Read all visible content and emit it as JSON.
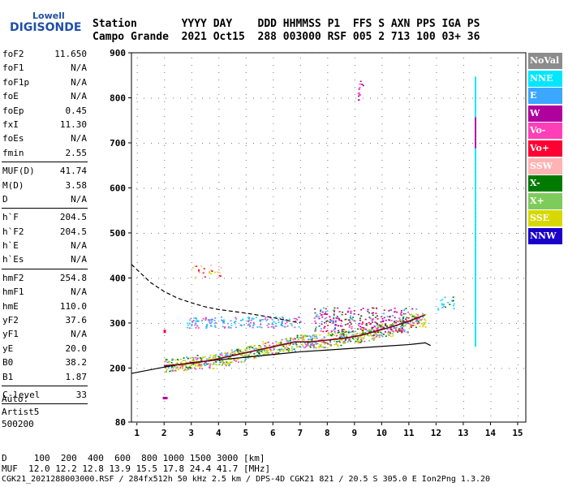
{
  "logo": {
    "line1": "Lowell",
    "line2": "DIGISONDE"
  },
  "header": {
    "labels": "Station       YYYY DAY    DDD HHMMSS P1  FFS S AXN PPS IGA PS",
    "values": "Campo Grande  2021 Oct15  288 003000 RSF 005 2 713 100 03+ 36"
  },
  "params_group1": [
    {
      "label": "foF2",
      "value": "11.650"
    },
    {
      "label": "foF1",
      "value": "N/A"
    },
    {
      "label": "foF1p",
      "value": "N/A"
    },
    {
      "label": "foE",
      "value": "N/A"
    },
    {
      "label": "foEp",
      "value": "0.45"
    },
    {
      "label": "fxI",
      "value": "11.30"
    },
    {
      "label": "foEs",
      "value": "N/A"
    },
    {
      "label": "fmin",
      "value": "2.55"
    }
  ],
  "params_group2": [
    {
      "label": "MUF(D)",
      "value": "41.74"
    },
    {
      "label": "M(D)",
      "value": "3.58"
    },
    {
      "label": "D",
      "value": "N/A"
    }
  ],
  "params_group3": [
    {
      "label": "h`F",
      "value": "204.5"
    },
    {
      "label": "h`F2",
      "value": "204.5"
    },
    {
      "label": "h`E",
      "value": "N/A"
    },
    {
      "label": "h`Es",
      "value": "N/A"
    }
  ],
  "params_group4": [
    {
      "label": "hmF2",
      "value": "254.8"
    },
    {
      "label": "hmF1",
      "value": "N/A"
    },
    {
      "label": "hmE",
      "value": "110.0"
    },
    {
      "label": "yF2",
      "value": "37.6"
    },
    {
      "label": "yF1",
      "value": "N/A"
    },
    {
      "label": "yE",
      "value": "20.0"
    },
    {
      "label": "B0",
      "value": "38.2"
    },
    {
      "label": "B1",
      "value": "1.87"
    }
  ],
  "params_group5": [
    {
      "label": "C-level",
      "value": "33"
    }
  ],
  "auto": {
    "line1": "Auto:",
    "line2": "Artist5",
    "line3": "500200"
  },
  "legend": [
    {
      "label": "NoVal",
      "color": "#8c8c8c",
      "text": "#ffffff"
    },
    {
      "label": "NNE",
      "color": "#00e6ff",
      "text": "#ffffff"
    },
    {
      "label": "E",
      "color": "#3ba7ff",
      "text": "#ffffff"
    },
    {
      "label": "W",
      "color": "#b0009e",
      "text": "#ffffff"
    },
    {
      "label": "Vo-",
      "color": "#ff3fb8",
      "text": "#ffffff"
    },
    {
      "label": "Vo+",
      "color": "#ff0033",
      "text": "#ffffff"
    },
    {
      "label": "SSW",
      "color": "#ffb3b3",
      "text": "#ffffff"
    },
    {
      "label": "X-",
      "color": "#007a00",
      "text": "#ffffff"
    },
    {
      "label": "X+",
      "color": "#7dcc5b",
      "text": "#ffffff"
    },
    {
      "label": "SSE",
      "color": "#d8d800",
      "text": "#ffffff"
    },
    {
      "label": "NNW",
      "color": "#1a00c8",
      "text": "#ffffff"
    }
  ],
  "footer": {
    "line1": "D     100  200  400  600  800 1000 1500 3000 [km]",
    "line2": "MUF  12.0 12.2 12.8 13.9 15.5 17.8 24.4 41.7 [MHz]",
    "line3": "CGK21_2021288003000.RSF / 284fx512h 50 kHz 2.5 km / DPS-4D CGK21 821 / 20.5 S 305.0 E Ion2Png 1.3.20"
  },
  "chart_data": {
    "type": "scatter",
    "title": "",
    "xlabel": "",
    "ylabel": "",
    "xlim": [
      0.8,
      15.3
    ],
    "ylim": [
      80,
      900
    ],
    "x_ticks": [
      1,
      2,
      3,
      4,
      5,
      6,
      7,
      8,
      9,
      10,
      11,
      12,
      13,
      14,
      15
    ],
    "y_ticks": [
      80,
      200,
      300,
      400,
      500,
      600,
      700,
      800,
      900
    ],
    "trace_x": [
      2.0,
      2.6,
      3.2,
      3.8,
      4.4,
      5.0,
      5.6,
      6.2,
      6.8,
      7.4,
      8.0,
      8.6,
      9.2,
      9.8,
      10.4,
      11.0,
      11.6
    ],
    "trace_y": [
      205,
      208,
      212,
      218,
      226,
      234,
      242,
      250,
      258,
      258,
      262,
      266,
      272,
      282,
      292,
      304,
      318
    ],
    "lower_curve_x": [
      0.8,
      2.0,
      3.0,
      4.0,
      5.0,
      6.0,
      7.0,
      8.0,
      9.0,
      10.0,
      11.0,
      11.6,
      11.8
    ],
    "lower_curve_y": [
      188,
      202,
      212,
      218,
      224,
      230,
      236,
      240,
      244,
      248,
      252,
      256,
      250
    ],
    "upper_curve_x": [
      0.8,
      1.5,
      2.0,
      2.5,
      3.0,
      3.5,
      4.0,
      5.0,
      6.0,
      7.0
    ],
    "upper_curve_y": [
      430,
      390,
      370,
      355,
      345,
      336,
      330,
      322,
      312,
      300
    ],
    "lower_curve_style": "solid",
    "upper_curve_style": "dashed"
  }
}
